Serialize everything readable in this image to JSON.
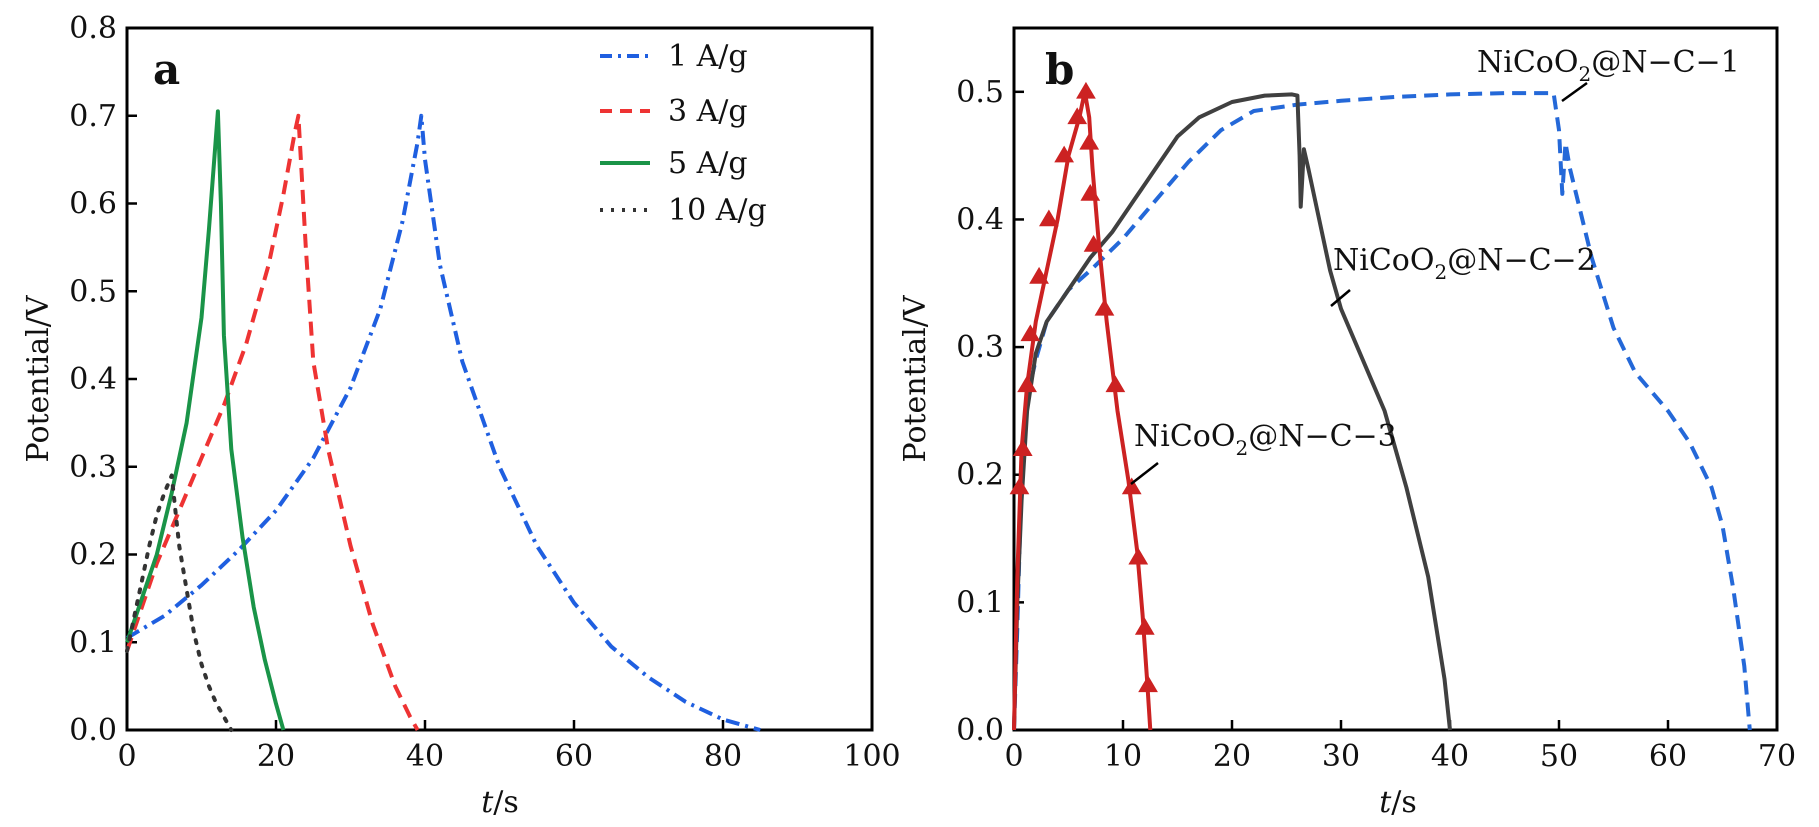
{
  "chart_data": [
    {
      "panel": "a",
      "type": "line",
      "xlabel_italic": "t",
      "xlabel_unit": "/s",
      "ylabel": "Potential/V",
      "xlim": [
        0,
        100
      ],
      "ylim": [
        0,
        0.8
      ],
      "xticks": [
        "0",
        "20",
        "40",
        "60",
        "80",
        "100"
      ],
      "yticks": [
        "0.0",
        "0.1",
        "0.2",
        "0.3",
        "0.4",
        "0.5",
        "0.6",
        "0.7",
        "0.8"
      ],
      "legend_position": "top-right",
      "series": [
        {
          "name": "1 A/g",
          "color": "#1f5fe0",
          "dash": "dashdot",
          "points": [
            [
              0,
              0.105
            ],
            [
              5,
              0.13
            ],
            [
              10,
              0.165
            ],
            [
              15,
              0.205
            ],
            [
              20,
              0.25
            ],
            [
              25,
              0.31
            ],
            [
              30,
              0.39
            ],
            [
              34,
              0.48
            ],
            [
              37,
              0.58
            ],
            [
              39,
              0.67
            ],
            [
              39.5,
              0.7
            ],
            [
              40,
              0.65
            ],
            [
              42,
              0.53
            ],
            [
              45,
              0.42
            ],
            [
              50,
              0.3
            ],
            [
              55,
              0.21
            ],
            [
              60,
              0.145
            ],
            [
              65,
              0.095
            ],
            [
              70,
              0.06
            ],
            [
              75,
              0.032
            ],
            [
              80,
              0.012
            ],
            [
              85,
              0.0
            ]
          ]
        },
        {
          "name": "3 A/g",
          "color": "#ee3333",
          "dash": "dashed",
          "points": [
            [
              0,
              0.09
            ],
            [
              2,
              0.14
            ],
            [
              4,
              0.19
            ],
            [
              7,
              0.25
            ],
            [
              10,
              0.31
            ],
            [
              13,
              0.37
            ],
            [
              16,
              0.44
            ],
            [
              19,
              0.53
            ],
            [
              21,
              0.61
            ],
            [
              22.5,
              0.68
            ],
            [
              23,
              0.7
            ],
            [
              24,
              0.55
            ],
            [
              25,
              0.42
            ],
            [
              27,
              0.32
            ],
            [
              30,
              0.21
            ],
            [
              33,
              0.12
            ],
            [
              36,
              0.05
            ],
            [
              38,
              0.015
            ],
            [
              39,
              0.0
            ]
          ]
        },
        {
          "name": "5 A/g",
          "color": "#1a9448",
          "dash": "solid",
          "points": [
            [
              0,
              0.1
            ],
            [
              2,
              0.15
            ],
            [
              4,
              0.2
            ],
            [
              6,
              0.27
            ],
            [
              8,
              0.35
            ],
            [
              10,
              0.47
            ],
            [
              11,
              0.57
            ],
            [
              11.8,
              0.66
            ],
            [
              12.2,
              0.705
            ],
            [
              12.6,
              0.6
            ],
            [
              13,
              0.45
            ],
            [
              14,
              0.32
            ],
            [
              15.5,
              0.22
            ],
            [
              17,
              0.14
            ],
            [
              18.5,
              0.08
            ],
            [
              20,
              0.03
            ],
            [
              21,
              0.0
            ]
          ]
        },
        {
          "name": "10 A/g",
          "color": "#333333",
          "dash": "dotted",
          "points": [
            [
              0,
              0.09
            ],
            [
              1,
              0.13
            ],
            [
              2,
              0.17
            ],
            [
              3,
              0.21
            ],
            [
              4,
              0.245
            ],
            [
              5,
              0.27
            ],
            [
              6,
              0.29
            ],
            [
              6.5,
              0.25
            ],
            [
              7,
              0.21
            ],
            [
              8,
              0.16
            ],
            [
              9,
              0.11
            ],
            [
              10,
              0.075
            ],
            [
              11,
              0.05
            ],
            [
              12,
              0.03
            ],
            [
              13,
              0.015
            ],
            [
              14,
              0.0
            ]
          ]
        }
      ]
    },
    {
      "panel": "b",
      "type": "line",
      "xlabel_italic": "t",
      "xlabel_unit": "/s",
      "ylabel": "Potential/V",
      "xlim": [
        0,
        70
      ],
      "ylim": [
        0,
        0.55
      ],
      "xticks": [
        "0",
        "10",
        "20",
        "30",
        "40",
        "50",
        "60",
        "70"
      ],
      "yticks": [
        "0.0",
        "0.1",
        "0.2",
        "0.3",
        "0.4",
        "0.5"
      ],
      "series": [
        {
          "name": "NiCoO2@N-C-1",
          "color": "#2468d8",
          "dash": "dashed",
          "points": [
            [
              0,
              0.0
            ],
            [
              0.3,
              0.08
            ],
            [
              0.7,
              0.2
            ],
            [
              1.2,
              0.26
            ],
            [
              2,
              0.29
            ],
            [
              3,
              0.32
            ],
            [
              5,
              0.345
            ],
            [
              7,
              0.36
            ],
            [
              10,
              0.385
            ],
            [
              13,
              0.415
            ],
            [
              16,
              0.445
            ],
            [
              19,
              0.47
            ],
            [
              22,
              0.485
            ],
            [
              26,
              0.49
            ],
            [
              30,
              0.493
            ],
            [
              35,
              0.496
            ],
            [
              40,
              0.498
            ],
            [
              45,
              0.499
            ],
            [
              49.5,
              0.499
            ],
            [
              50,
              0.47
            ],
            [
              50.3,
              0.42
            ],
            [
              50.6,
              0.46
            ],
            [
              51,
              0.44
            ],
            [
              53,
              0.37
            ],
            [
              55,
              0.315
            ],
            [
              57,
              0.28
            ],
            [
              60,
              0.25
            ],
            [
              62,
              0.225
            ],
            [
              64,
              0.19
            ],
            [
              65,
              0.16
            ],
            [
              66,
              0.11
            ],
            [
              67,
              0.05
            ],
            [
              67.5,
              0.0
            ]
          ]
        },
        {
          "name": "NiCoO2@N-C-2",
          "color": "#404040",
          "dash": "solid",
          "points": [
            [
              0,
              0.0
            ],
            [
              0.3,
              0.1
            ],
            [
              0.7,
              0.18
            ],
            [
              1.2,
              0.25
            ],
            [
              2,
              0.295
            ],
            [
              3,
              0.32
            ],
            [
              5,
              0.345
            ],
            [
              7,
              0.37
            ],
            [
              9,
              0.39
            ],
            [
              11,
              0.415
            ],
            [
              13,
              0.44
            ],
            [
              15,
              0.465
            ],
            [
              17,
              0.48
            ],
            [
              20,
              0.492
            ],
            [
              23,
              0.497
            ],
            [
              25.5,
              0.498
            ],
            [
              26,
              0.497
            ],
            [
              26.2,
              0.45
            ],
            [
              26.3,
              0.41
            ],
            [
              26.6,
              0.455
            ],
            [
              27,
              0.44
            ],
            [
              28,
              0.4
            ],
            [
              29,
              0.36
            ],
            [
              30,
              0.33
            ],
            [
              32,
              0.29
            ],
            [
              34,
              0.25
            ],
            [
              36,
              0.19
            ],
            [
              38,
              0.12
            ],
            [
              39.5,
              0.04
            ],
            [
              40,
              0.0
            ]
          ]
        },
        {
          "name": "NiCoO2@N-C-3",
          "color": "#cc2222",
          "dash": "solid",
          "marker": "triangle",
          "points": [
            [
              0,
              0.0
            ],
            [
              0.3,
              0.12
            ],
            [
              0.7,
              0.22
            ],
            [
              1.2,
              0.27
            ],
            [
              2,
              0.32
            ],
            [
              3,
              0.36
            ],
            [
              4,
              0.4
            ],
            [
              5,
              0.45
            ],
            [
              6,
              0.48
            ],
            [
              6.5,
              0.5
            ],
            [
              6.9,
              0.48
            ],
            [
              7.2,
              0.44
            ],
            [
              7.8,
              0.38
            ],
            [
              8.5,
              0.32
            ],
            [
              9.5,
              0.25
            ],
            [
              10.5,
              0.195
            ],
            [
              11.3,
              0.14
            ],
            [
              11.8,
              0.09
            ],
            [
              12.2,
              0.04
            ],
            [
              12.5,
              0.0
            ]
          ],
          "marker_points": [
            [
              0.5,
              0.19
            ],
            [
              0.8,
              0.22
            ],
            [
              1.2,
              0.27
            ],
            [
              1.5,
              0.31
            ],
            [
              2.3,
              0.355
            ],
            [
              3.2,
              0.4
            ],
            [
              4.6,
              0.45
            ],
            [
              5.8,
              0.48
            ],
            [
              6.6,
              0.5
            ],
            [
              6.9,
              0.46
            ],
            [
              7,
              0.42
            ],
            [
              7.3,
              0.38
            ],
            [
              8.3,
              0.33
            ],
            [
              9.3,
              0.27
            ],
            [
              10.8,
              0.19
            ],
            [
              11.4,
              0.135
            ],
            [
              12,
              0.08
            ],
            [
              12.3,
              0.035
            ]
          ]
        }
      ]
    }
  ],
  "panel_a": {
    "letter": "a",
    "ylabel": "Potential/V",
    "xlabel_t": "t",
    "xlabel_s": "/s",
    "legend": [
      "1 A/g",
      "3 A/g",
      "5 A/g",
      "10 A/g"
    ]
  },
  "panel_b": {
    "letter": "b",
    "ylabel": "Potential/V",
    "xlabel_t": "t",
    "xlabel_s": "/s",
    "annotations": [
      {
        "prefix": "NiCoO",
        "sub": "2",
        "suffix": "@N−C−1"
      },
      {
        "prefix": "NiCoO",
        "sub": "2",
        "suffix": "@N−C−2"
      },
      {
        "prefix": "NiCoO",
        "sub": "2",
        "suffix": "@N−C−3"
      }
    ]
  }
}
